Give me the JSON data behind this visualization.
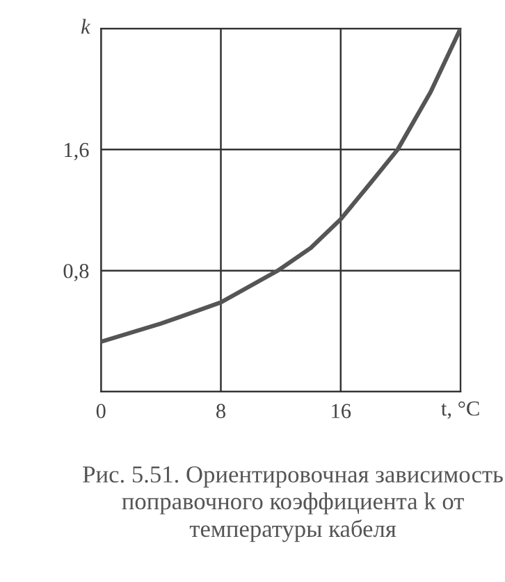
{
  "chart_data": {
    "type": "line",
    "x": [
      0,
      4,
      8,
      11.8,
      14,
      16,
      18,
      19.8,
      22,
      24
    ],
    "series": [
      {
        "color": "#555555",
        "values": [
          0.33,
          0.45,
          0.59,
          0.8,
          0.95,
          1.14,
          1.38,
          1.6,
          1.98,
          2.4
        ]
      }
    ],
    "xlim": [
      0,
      24
    ],
    "ylim": [
      0,
      2.4
    ],
    "xticks": [
      0,
      8,
      16,
      {
        "value": 24,
        "label": null
      }
    ],
    "yticks": [
      {
        "value": 0,
        "label": null
      },
      {
        "value": 0.8,
        "label": "0,8"
      },
      {
        "value": 1.6,
        "label": "1,6"
      },
      {
        "value": 2.4,
        "label": null
      }
    ],
    "xlabel": "t, °C",
    "ylabel": "k",
    "grid": true,
    "marker": "none",
    "line_style": "solid",
    "annotations": [
      "Рис. 5.51. Ориентировочная зависимость поправочного коэффициента k от температуры кабеля"
    ]
  }
}
